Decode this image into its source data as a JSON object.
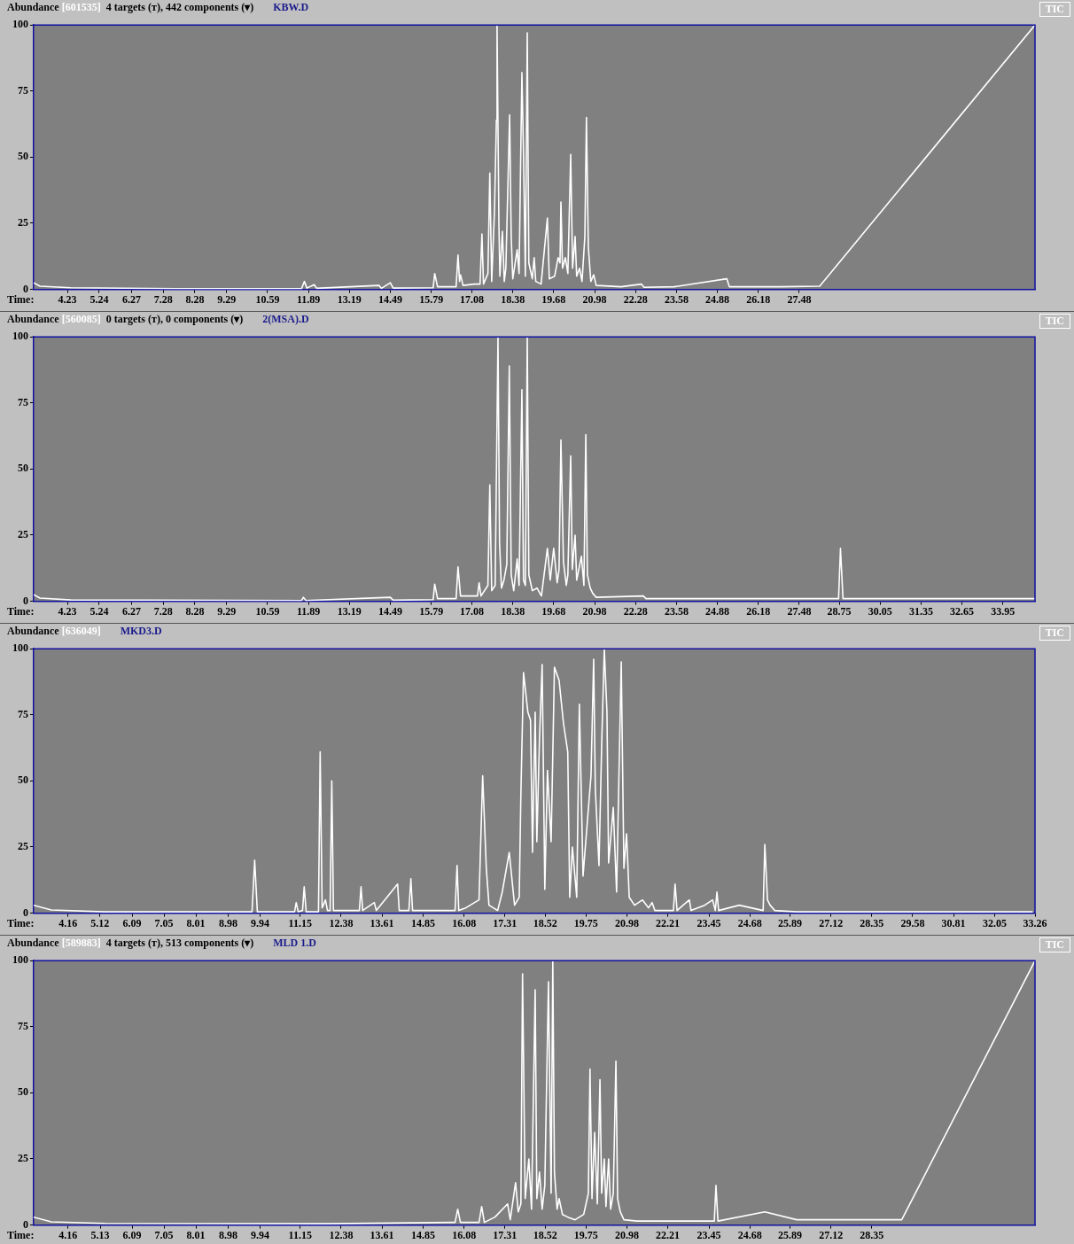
{
  "chart_data": [
    {
      "type": "line",
      "title": "Abundance",
      "subtitle": "[601535]",
      "annotations": [
        "4 targets (ᴛ), 442 components (▾)",
        "KBW.D",
        "TIC"
      ],
      "xlabel": "Time:",
      "xlim": [
        3.16,
        34.97
      ],
      "xticks": [
        4.23,
        5.24,
        6.27,
        7.28,
        8.28,
        9.29,
        10.59,
        11.89,
        13.19,
        14.49,
        15.79,
        17.08,
        18.38,
        19.68,
        20.98,
        22.28,
        23.58,
        24.88,
        26.18,
        27.48
      ],
      "ylim": [
        0,
        100
      ],
      "yticks": [
        0,
        25,
        50,
        75,
        100
      ],
      "series": [
        {
          "color": "#ffffff",
          "x": [
            3.16,
            3.36,
            4.34,
            7.7,
            11.67,
            11.76,
            11.84,
            12.07,
            12.15,
            14.13,
            14.21,
            14.49,
            14.58,
            15.85,
            15.9,
            15.99,
            16.58,
            16.64,
            16.69,
            16.72,
            16.8,
            17.17,
            17.34,
            17.4,
            17.45,
            17.59,
            17.65,
            17.71,
            17.8,
            17.86,
            17.88,
            17.94,
            17.97,
            18.05,
            18.11,
            18.16,
            18.28,
            18.33,
            18.38,
            18.52,
            18.58,
            18.67,
            18.72,
            18.78,
            18.84,
            18.89,
            19.0,
            19.06,
            19.11,
            19.28,
            19.48,
            19.54,
            19.71,
            19.82,
            19.88,
            19.91,
            19.96,
            20.05,
            20.13,
            20.22,
            20.28,
            20.36,
            20.41,
            20.5,
            20.58,
            20.67,
            20.72,
            20.78,
            20.86,
            20.95,
            21.03,
            21.82,
            22.47,
            22.55,
            23.51,
            25.18,
            25.26,
            26.9,
            28.13,
            34.97
          ],
          "values": [
            2.5,
            1.2,
            0.6,
            0.3,
            0.3,
            3,
            0.5,
            1.8,
            0.4,
            1.5,
            0.4,
            2.5,
            0.5,
            0.6,
            6,
            1,
            1,
            13,
            3,
            5.5,
            1.5,
            2,
            2,
            21,
            2,
            6,
            44,
            3,
            30,
            64,
            100,
            24,
            5,
            22,
            3,
            8,
            66,
            20,
            4,
            15,
            6,
            82,
            52,
            5,
            97,
            10,
            4,
            12,
            3,
            2,
            27,
            4,
            5,
            12,
            10,
            33,
            8,
            12,
            6,
            51,
            8,
            20,
            5,
            8,
            3,
            20,
            65,
            16,
            3,
            5.5,
            1.5,
            1,
            2,
            0.8,
            1,
            4,
            1,
            1,
            1.2,
            100
          ]
        }
      ]
    },
    {
      "type": "line",
      "title": "Abundance",
      "subtitle": "[560085]",
      "annotations": [
        "0 targets (ᴛ), 0 components (▾)",
        "2(MSA).D",
        "TIC"
      ],
      "xlabel": "Time:",
      "xlim": [
        3.16,
        34.97
      ],
      "xticks": [
        4.23,
        5.24,
        6.27,
        7.28,
        8.28,
        9.29,
        10.59,
        11.89,
        13.19,
        14.49,
        15.79,
        17.08,
        18.38,
        19.68,
        20.98,
        22.28,
        23.58,
        24.88,
        26.18,
        27.48,
        28.75,
        30.05,
        31.35,
        32.65,
        33.95
      ],
      "ylim": [
        0,
        100
      ],
      "yticks": [
        0,
        25,
        50,
        75,
        100
      ],
      "series": [
        {
          "color": "#ffffff",
          "x": [
            3.16,
            3.36,
            4.34,
            11.67,
            11.73,
            11.81,
            14.49,
            14.58,
            15.85,
            15.9,
            15.99,
            16.58,
            16.64,
            16.72,
            17.26,
            17.31,
            17.37,
            17.59,
            17.65,
            17.71,
            17.82,
            17.91,
            17.96,
            18.02,
            18.1,
            18.19,
            18.27,
            18.33,
            18.41,
            18.52,
            18.58,
            18.67,
            18.72,
            18.78,
            18.84,
            18.89,
            19.0,
            19.15,
            19.29,
            19.48,
            19.57,
            19.68,
            19.79,
            19.85,
            19.91,
            19.99,
            20.08,
            20.13,
            20.22,
            20.27,
            20.36,
            20.41,
            20.56,
            20.64,
            20.7,
            20.75,
            20.84,
            20.92,
            21.03,
            22.53,
            22.61,
            25.21,
            28.73,
            28.79,
            28.87,
            34.97
          ],
          "values": [
            2.5,
            1.2,
            0.5,
            0.3,
            1.5,
            0.3,
            1.5,
            0.4,
            0.6,
            6.5,
            1,
            1,
            13,
            2,
            2,
            7,
            2,
            6,
            44,
            4,
            6,
            100,
            22,
            5,
            8,
            14,
            89,
            10,
            4,
            16,
            6,
            80,
            8,
            6,
            100,
            10,
            4,
            5,
            2,
            20,
            8,
            20,
            7,
            12,
            61,
            15,
            6,
            10,
            55,
            12,
            25,
            8,
            17,
            6,
            63,
            10,
            5,
            3,
            1.5,
            2,
            1,
            1,
            1,
            20,
            1,
            1
          ]
        }
      ]
    },
    {
      "type": "line",
      "title": "Abundance",
      "subtitle": "[636049]",
      "annotations": [
        "MKD3.D",
        "TIC"
      ],
      "xlabel": "Time:",
      "xlim": [
        3.13,
        33.26
      ],
      "xticks": [
        4.16,
        5.12,
        6.09,
        7.05,
        8.01,
        8.98,
        9.94,
        11.15,
        12.38,
        13.61,
        14.85,
        16.08,
        17.31,
        18.52,
        19.75,
        20.98,
        22.21,
        23.45,
        24.68,
        25.89,
        27.12,
        28.35,
        29.58,
        30.81,
        32.05,
        33.26
      ],
      "ylim": [
        0,
        100
      ],
      "yticks": [
        0,
        25,
        50,
        75,
        100
      ],
      "series": [
        {
          "color": "#ffffff",
          "x": [
            3.13,
            3.66,
            5.27,
            9.7,
            9.78,
            9.86,
            10.98,
            11.03,
            11.09,
            11.22,
            11.27,
            11.33,
            11.7,
            11.75,
            11.81,
            11.91,
            11.97,
            12.05,
            12.1,
            12.15,
            12.93,
            12.98,
            13.03,
            13.38,
            13.44,
            14.08,
            14.13,
            14.42,
            14.48,
            14.53,
            15.81,
            15.87,
            15.92,
            16.13,
            16.53,
            16.64,
            16.75,
            16.83,
            17.09,
            17.23,
            17.44,
            17.6,
            17.74,
            17.79,
            17.87,
            18.0,
            18.08,
            18.14,
            18.22,
            18.27,
            18.35,
            18.43,
            18.51,
            18.59,
            18.7,
            18.8,
            18.94,
            19.07,
            19.2,
            19.26,
            19.34,
            19.47,
            19.55,
            19.66,
            19.9,
            19.98,
            20.03,
            20.14,
            20.22,
            20.3,
            20.38,
            20.43,
            20.57,
            20.67,
            20.81,
            20.89,
            20.97,
            21.05,
            21.21,
            21.45,
            21.63,
            21.74,
            21.82,
            22.38,
            22.43,
            22.49,
            22.67,
            22.86,
            22.91,
            23.32,
            23.56,
            23.64,
            23.69,
            23.74,
            24.36,
            25.08,
            25.13,
            25.21,
            25.29,
            25.43,
            26.09,
            33.19
          ],
          "values": [
            3,
            1.2,
            0.5,
            0.5,
            20,
            0.5,
            0.5,
            4,
            0.5,
            1,
            10,
            0.5,
            0.5,
            61,
            2,
            5,
            1,
            1,
            50,
            1,
            1,
            10,
            1,
            4,
            1,
            11,
            1,
            1,
            13,
            1,
            1,
            18,
            1,
            2,
            5,
            52,
            17,
            3,
            1,
            8,
            23,
            3,
            6,
            45,
            91,
            76,
            73,
            23,
            76,
            27,
            66,
            94,
            9,
            54,
            27,
            93,
            88,
            72,
            61,
            6,
            25,
            6,
            79,
            14,
            52,
            96,
            47,
            18,
            63,
            100,
            76,
            19,
            40,
            8,
            95,
            17,
            30,
            6,
            3,
            5,
            2,
            4,
            1,
            1,
            11,
            1,
            3,
            5,
            1,
            3,
            5,
            1,
            8,
            1,
            3,
            1,
            26,
            5,
            3,
            1,
            0.5,
            0.5
          ]
        }
      ]
    },
    {
      "type": "line",
      "title": "Abundance",
      "subtitle": "[589883]",
      "annotations": [
        "4 targets (ᴛ), 513 components (▾)",
        "MLD 1.D",
        "TIC"
      ],
      "xlabel": "Time:",
      "xlim": [
        3.13,
        33.26
      ],
      "xticks": [
        4.16,
        5.13,
        6.09,
        7.05,
        8.01,
        8.98,
        9.94,
        11.15,
        12.38,
        13.61,
        14.85,
        16.08,
        17.31,
        18.52,
        19.75,
        20.98,
        22.21,
        23.45,
        24.68,
        25.89,
        27.12,
        28.35
      ],
      "ylim": [
        0,
        100
      ],
      "yticks": [
        0,
        25,
        50,
        75,
        100
      ],
      "series": [
        {
          "color": "#ffffff",
          "x": [
            3.13,
            3.66,
            5.27,
            12.0,
            15.81,
            15.89,
            15.97,
            16.53,
            16.61,
            16.69,
            17.01,
            17.39,
            17.47,
            17.63,
            17.71,
            17.79,
            17.84,
            17.92,
            18.03,
            18.11,
            18.22,
            18.27,
            18.35,
            18.43,
            18.51,
            18.62,
            18.7,
            18.75,
            18.8,
            18.88,
            18.94,
            19.04,
            19.2,
            19.42,
            19.68,
            19.82,
            19.87,
            19.93,
            20.01,
            20.09,
            20.17,
            20.22,
            20.3,
            20.35,
            20.43,
            20.49,
            20.57,
            20.65,
            20.7,
            20.78,
            20.89,
            21.29,
            22.35,
            23.61,
            23.66,
            23.72,
            25.13,
            26.09,
            28.23,
            29.25,
            33.26
          ],
          "values": [
            3,
            1.2,
            0.6,
            0.5,
            1,
            6,
            1,
            1,
            7,
            1,
            3,
            8,
            2,
            16,
            5,
            8,
            95,
            10,
            25,
            6,
            89,
            10,
            20,
            6,
            15,
            92,
            12,
            100,
            20,
            6,
            10,
            4,
            3,
            2,
            4,
            12,
            59,
            10,
            35,
            8,
            55,
            12,
            25,
            7,
            25,
            6,
            12,
            62,
            10,
            5,
            2,
            1.5,
            1.5,
            1.5,
            15,
            1.5,
            5,
            2,
            2,
            2,
            100
          ]
        }
      ]
    }
  ]
}
